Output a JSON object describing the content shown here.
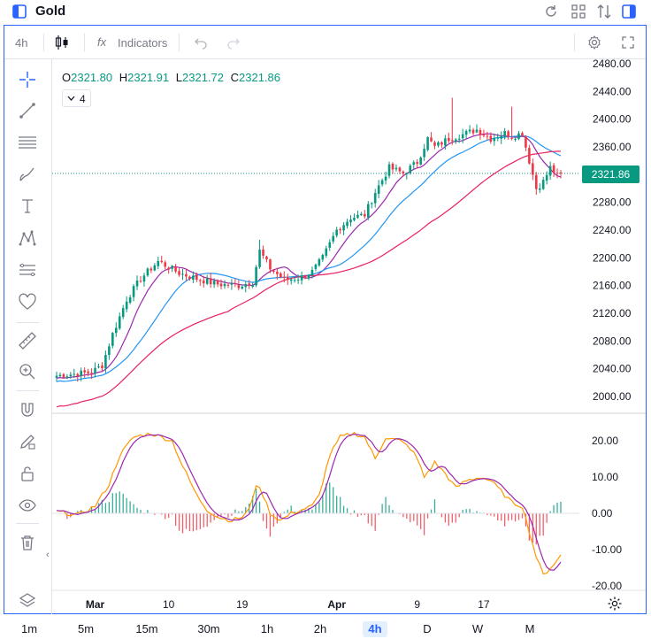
{
  "title_bar": {
    "symbol": "Gold"
  },
  "toolbar": {
    "interval": "4h",
    "indicators_label": "Indicators",
    "fx_glyph": "fx"
  },
  "legend": {
    "o_key": "O",
    "o_val": "2321.80",
    "h_key": "H",
    "h_val": "2321.91",
    "l_key": "L",
    "l_val": "2321.72",
    "c_key": "C",
    "c_val": "2321.86",
    "ma_count": "4"
  },
  "last_price_label": "2321.86",
  "timeframes": [
    "1m",
    "5m",
    "15m",
    "30m",
    "1h",
    "2h",
    "4h",
    "D",
    "W",
    "M"
  ],
  "active_timeframe": "4h",
  "colors": {
    "up": "#089981",
    "down": "#f23645",
    "line_purple": "#9c27b0",
    "line_blue": "#2196f3",
    "line_red": "#e91e63",
    "osc_orange": "#ff9800",
    "osc_purple": "#9c27b0",
    "accent": "#2962ff"
  },
  "icons": [
    "panel-icon",
    "refresh-icon",
    "grid-icon",
    "compare-icon",
    "sidebar-icon",
    "candle-icon",
    "undo-icon",
    "redo-icon",
    "settings-icon",
    "fullscreen-icon",
    "crosshair-icon",
    "trendline-icon",
    "fib-icon",
    "brush-icon",
    "text-icon",
    "pattern-icon",
    "prediction-icon",
    "heart-icon",
    "ruler-icon",
    "zoom-icon",
    "magnet-icon",
    "lock-pencil-icon",
    "lock-icon",
    "eye-icon",
    "trash-icon",
    "layers-icon",
    "gear-icon"
  ],
  "chart_data": {
    "type": "candlestick",
    "price_axis": {
      "ticks": [
        "2480.00",
        "2440.00",
        "2400.00",
        "2360.00",
        "2320.00",
        "2280.00",
        "2240.00",
        "2200.00",
        "2160.00",
        "2120.00",
        "2080.00",
        "2040.00",
        "2000.00"
      ],
      "ylim": [
        2000,
        2480
      ]
    },
    "osc_axis": {
      "ticks": [
        "20.00",
        "10.00",
        "0.00",
        "-10.00",
        "-20.00"
      ],
      "ylim": [
        -20,
        20
      ]
    },
    "x_labels": [
      {
        "label": "Mar",
        "bold": true,
        "idx": 11
      },
      {
        "label": "10",
        "bold": false,
        "idx": 32
      },
      {
        "label": "19",
        "bold": false,
        "idx": 53
      },
      {
        "label": "Apr",
        "bold": true,
        "idx": 80
      },
      {
        "label": "9",
        "bold": false,
        "idx": 103
      },
      {
        "label": "17",
        "bold": false,
        "idx": 122
      }
    ],
    "bar_count": 145,
    "close_anchors": [
      [
        0,
        2030
      ],
      [
        10,
        2035
      ],
      [
        13,
        2045
      ],
      [
        16,
        2090
      ],
      [
        20,
        2140
      ],
      [
        24,
        2170
      ],
      [
        29,
        2195
      ],
      [
        35,
        2178
      ],
      [
        40,
        2170
      ],
      [
        46,
        2162
      ],
      [
        52,
        2160
      ],
      [
        56,
        2165
      ],
      [
        58,
        2210
      ],
      [
        61,
        2185
      ],
      [
        65,
        2168
      ],
      [
        70,
        2172
      ],
      [
        73,
        2180
      ],
      [
        76,
        2200
      ],
      [
        80,
        2240
      ],
      [
        84,
        2258
      ],
      [
        88,
        2262
      ],
      [
        91,
        2295
      ],
      [
        95,
        2330
      ],
      [
        99,
        2322
      ],
      [
        103,
        2338
      ],
      [
        106,
        2372
      ],
      [
        108,
        2360
      ],
      [
        112,
        2372
      ],
      [
        116,
        2378
      ],
      [
        120,
        2385
      ],
      [
        124,
        2372
      ],
      [
        128,
        2380
      ],
      [
        130,
        2375
      ],
      [
        133,
        2380
      ],
      [
        135,
        2340
      ],
      [
        137,
        2300
      ],
      [
        139,
        2310
      ],
      [
        141,
        2330
      ],
      [
        143,
        2318
      ],
      [
        144,
        2321.86
      ]
    ],
    "series": [
      {
        "name": "",
        "kind": "ma",
        "period": 9
      },
      {
        "name": "",
        "kind": "ma",
        "period": 21
      },
      {
        "name": "",
        "kind": "ma",
        "period": 50
      }
    ],
    "oscillator": {
      "anchors": [
        [
          0,
          0.5
        ],
        [
          6,
          -0.5
        ],
        [
          11,
          2
        ],
        [
          15,
          8
        ],
        [
          18,
          16
        ],
        [
          22,
          21
        ],
        [
          27,
          22
        ],
        [
          33,
          20
        ],
        [
          36,
          13
        ],
        [
          40,
          5
        ],
        [
          43,
          1
        ],
        [
          46,
          -1
        ],
        [
          50,
          -2
        ],
        [
          53,
          -1
        ],
        [
          55,
          1
        ],
        [
          57,
          8
        ],
        [
          59,
          5
        ],
        [
          61,
          0
        ],
        [
          64,
          -2
        ],
        [
          67,
          0
        ],
        [
          70,
          1
        ],
        [
          73,
          2
        ],
        [
          75,
          5
        ],
        [
          78,
          16
        ],
        [
          81,
          21
        ],
        [
          85,
          22
        ],
        [
          88,
          21
        ],
        [
          91,
          15
        ],
        [
          94,
          21
        ],
        [
          98,
          20
        ],
        [
          101,
          18
        ],
        [
          103,
          15
        ],
        [
          105,
          10
        ],
        [
          108,
          14
        ],
        [
          111,
          11
        ],
        [
          114,
          7
        ],
        [
          117,
          9
        ],
        [
          121,
          10
        ],
        [
          124,
          9
        ],
        [
          127,
          6
        ],
        [
          130,
          3
        ],
        [
          133,
          2
        ],
        [
          135,
          -5
        ],
        [
          137,
          -12
        ],
        [
          139,
          -17
        ],
        [
          141,
          -15
        ],
        [
          143,
          -13
        ],
        [
          144,
          -11.5
        ]
      ],
      "ylim": [
        -20,
        20
      ]
    }
  }
}
